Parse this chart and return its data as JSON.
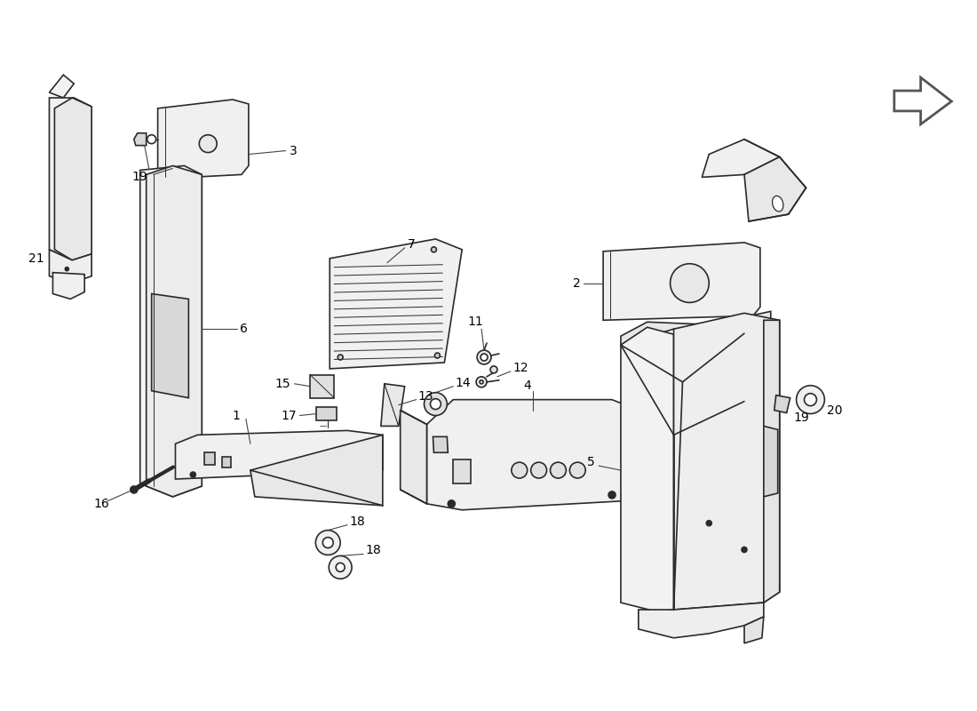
{
  "background_color": "#ffffff",
  "line_color": "#2a2a2a",
  "label_color": "#000000",
  "label_fontsize": 10,
  "fig_width": 11.0,
  "fig_height": 8.0
}
